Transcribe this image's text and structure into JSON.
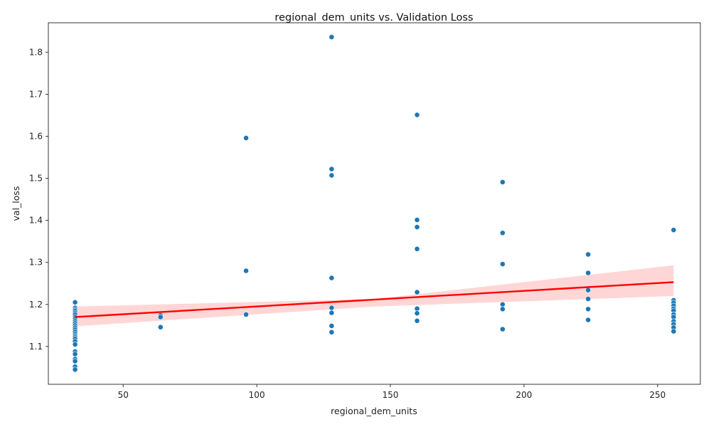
{
  "chart_data": {
    "type": "scatter",
    "title": "regional_dem_units vs. Validation Loss",
    "xlabel": "regional_dem_units",
    "ylabel": "val_loss",
    "xlim": [
      22,
      266
    ],
    "ylim": [
      1.01,
      1.87
    ],
    "xticks": [
      50,
      100,
      150,
      200,
      250
    ],
    "yticks": [
      1.1,
      1.2,
      1.3,
      1.4,
      1.5,
      1.6,
      1.7,
      1.8
    ],
    "grid": false,
    "legend": "none",
    "colors": {
      "points": "#1f77b4",
      "regression_line": "#ff0000",
      "confidence_band": "#ffcccc"
    },
    "series": [
      {
        "points": [
          [
            32,
            1.205
          ],
          [
            32,
            1.192
          ],
          [
            32,
            1.188
          ],
          [
            32,
            1.184
          ],
          [
            32,
            1.18
          ],
          [
            32,
            1.176
          ],
          [
            32,
            1.17
          ],
          [
            32,
            1.165
          ],
          [
            32,
            1.16
          ],
          [
            32,
            1.155
          ],
          [
            32,
            1.15
          ],
          [
            32,
            1.145
          ],
          [
            32,
            1.14
          ],
          [
            32,
            1.135
          ],
          [
            32,
            1.13
          ],
          [
            32,
            1.126
          ],
          [
            32,
            1.122
          ],
          [
            32,
            1.118
          ],
          [
            32,
            1.112
          ],
          [
            32,
            1.105
          ],
          [
            32,
            1.088
          ],
          [
            32,
            1.082
          ],
          [
            32,
            1.07
          ],
          [
            32,
            1.065
          ],
          [
            32,
            1.052
          ],
          [
            32,
            1.045
          ],
          [
            64,
            1.174
          ],
          [
            64,
            1.17
          ],
          [
            64,
            1.146
          ],
          [
            96,
            1.596
          ],
          [
            96,
            1.28
          ],
          [
            96,
            1.176
          ],
          [
            128,
            1.836
          ],
          [
            128,
            1.522
          ],
          [
            128,
            1.507
          ],
          [
            128,
            1.263
          ],
          [
            128,
            1.192
          ],
          [
            128,
            1.18
          ],
          [
            128,
            1.149
          ],
          [
            128,
            1.134
          ],
          [
            160,
            1.651
          ],
          [
            160,
            1.401
          ],
          [
            160,
            1.384
          ],
          [
            160,
            1.332
          ],
          [
            160,
            1.229
          ],
          [
            160,
            1.19
          ],
          [
            160,
            1.179
          ],
          [
            160,
            1.161
          ],
          [
            192,
            1.491
          ],
          [
            192,
            1.37
          ],
          [
            192,
            1.296
          ],
          [
            192,
            1.2
          ],
          [
            192,
            1.189
          ],
          [
            192,
            1.141
          ],
          [
            224,
            1.319
          ],
          [
            224,
            1.275
          ],
          [
            224,
            1.234
          ],
          [
            224,
            1.213
          ],
          [
            224,
            1.189
          ],
          [
            224,
            1.163
          ],
          [
            256,
            1.377
          ],
          [
            256,
            1.21
          ],
          [
            256,
            1.204
          ],
          [
            256,
            1.197
          ],
          [
            256,
            1.19
          ],
          [
            256,
            1.185
          ],
          [
            256,
            1.176
          ],
          [
            256,
            1.17
          ],
          [
            256,
            1.16
          ],
          [
            256,
            1.153
          ],
          [
            256,
            1.145
          ],
          [
            256,
            1.136
          ]
        ]
      }
    ],
    "regression": {
      "x_range": [
        32,
        256
      ],
      "y_start": 1.17,
      "y_end": 1.253,
      "ci_start": [
        1.148,
        1.195
      ],
      "ci_mid": [
        1.195,
        1.213
      ],
      "ci_end": [
        1.22,
        1.293
      ]
    }
  }
}
